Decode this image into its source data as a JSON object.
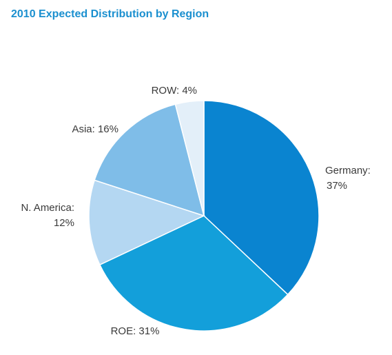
{
  "chart_data": {
    "type": "pie",
    "title": "2010 Expected Distribution by Region",
    "slices": [
      {
        "label": "Germany",
        "value": 37,
        "value_text": "37%",
        "color": "#0a84d0"
      },
      {
        "label": "ROE",
        "value": 31,
        "value_text": "31%",
        "color": "#139fda"
      },
      {
        "label": "N. America",
        "value": 12,
        "value_text": "12%",
        "color": "#b4d7f2"
      },
      {
        "label": "Asia",
        "value": 16,
        "value_text": "16%",
        "color": "#7fbde8"
      },
      {
        "label": "ROW",
        "value": 4,
        "value_text": "4%",
        "color": "#e3eff9"
      }
    ],
    "start_angle": "12 o'clock",
    "direction": "clockwise",
    "legend": "none"
  },
  "colors": {
    "title": "#1a8fcf",
    "label_text": "#3a3a3a"
  }
}
